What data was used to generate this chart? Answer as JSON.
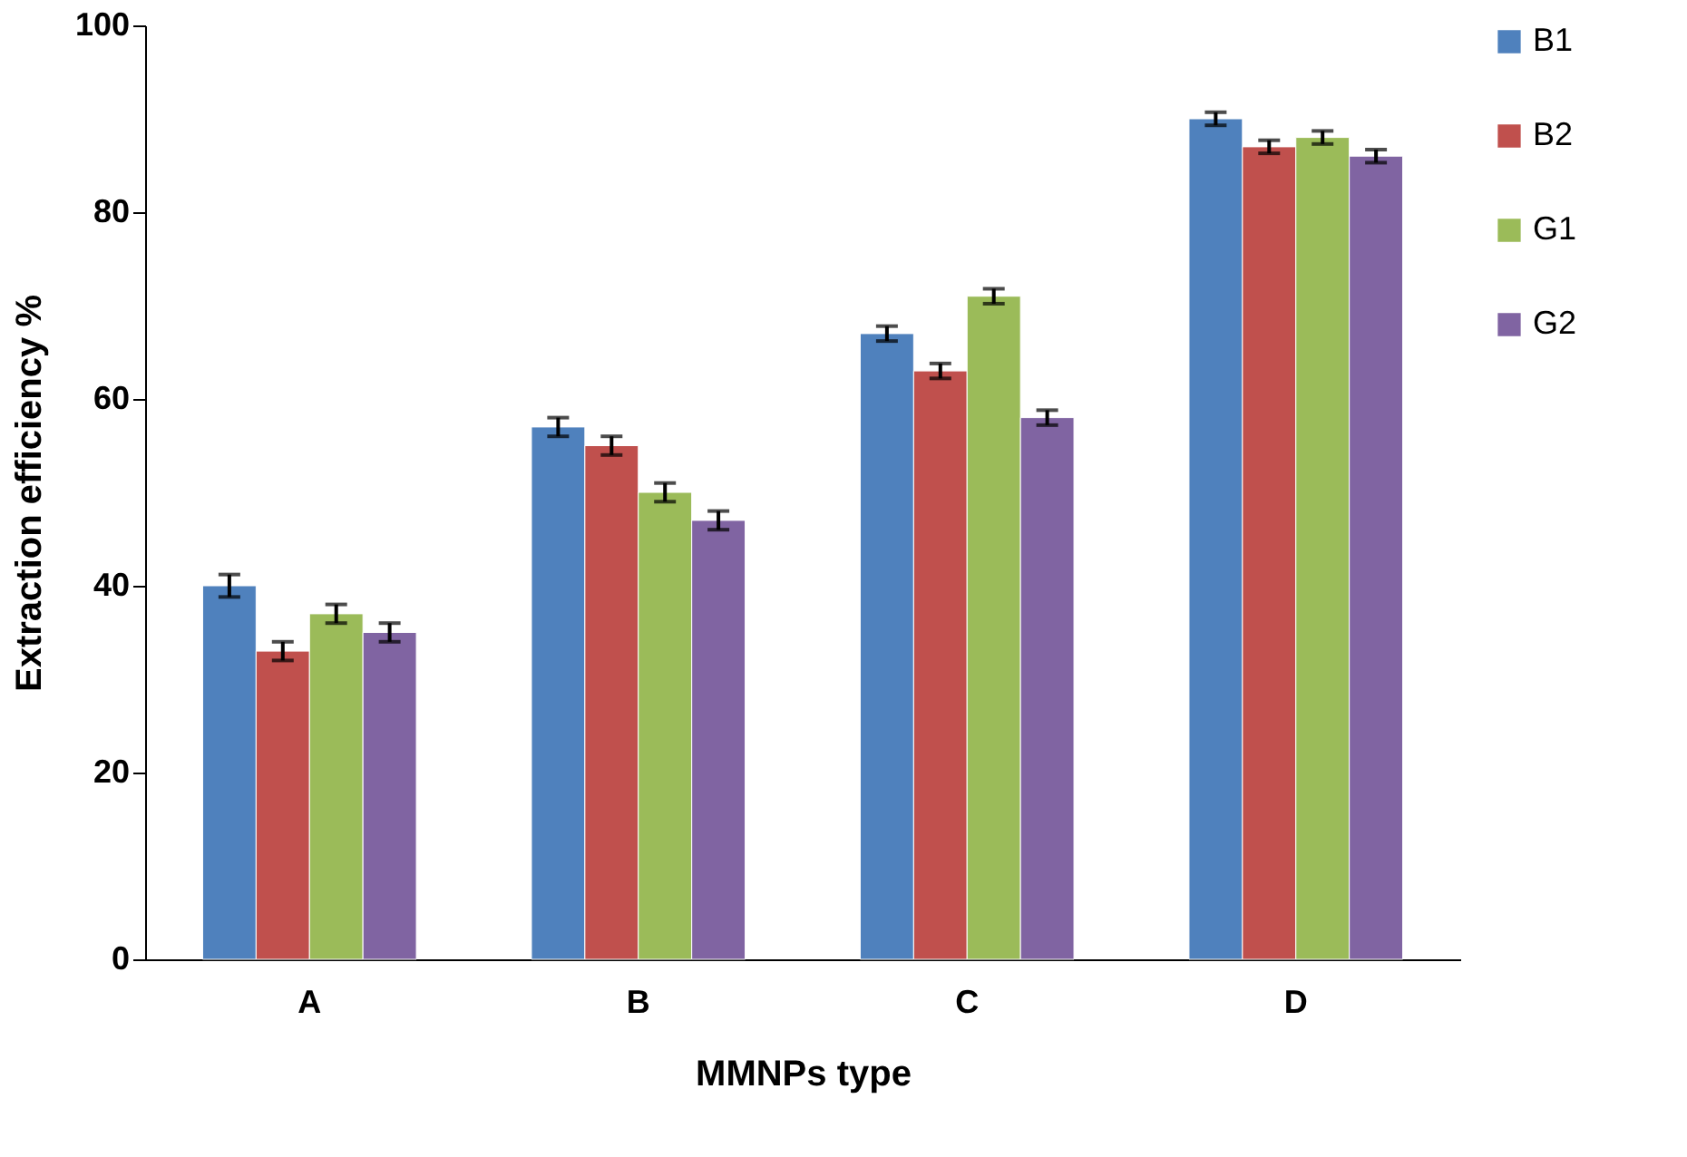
{
  "chart_data": {
    "type": "bar",
    "xlabel": "MMNPs type",
    "ylabel": "Extraction efficiency %",
    "categories": [
      "A",
      "B",
      "C",
      "D"
    ],
    "series": [
      {
        "name": "B1",
        "color": "#4f81bd",
        "values": [
          40,
          57,
          67,
          90
        ],
        "errors": [
          1.2,
          1,
          0.8,
          0.7
        ]
      },
      {
        "name": "B2",
        "color": "#c0504d",
        "values": [
          33,
          55,
          63,
          87
        ],
        "errors": [
          1,
          1,
          0.8,
          0.7
        ]
      },
      {
        "name": "G1",
        "color": "#9bbb59",
        "values": [
          37,
          50,
          71,
          88
        ],
        "errors": [
          1,
          1,
          0.8,
          0.7
        ]
      },
      {
        "name": "G2",
        "color": "#8064a2",
        "values": [
          35,
          47,
          58,
          86
        ],
        "errors": [
          1,
          1,
          0.8,
          0.7
        ]
      }
    ],
    "ylim": [
      0,
      100
    ],
    "yticks": [
      0,
      20,
      40,
      60,
      80,
      100
    ],
    "grid": false,
    "legend": "right"
  }
}
